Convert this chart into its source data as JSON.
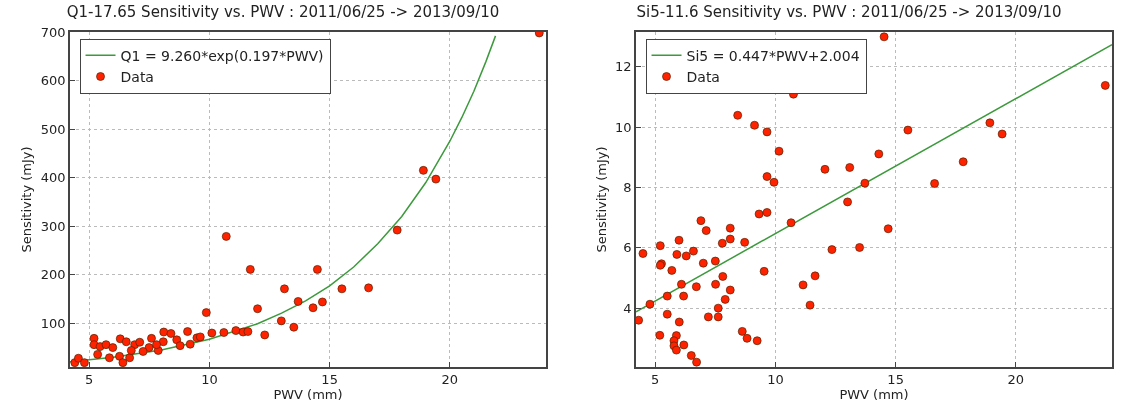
{
  "chart_data": [
    {
      "type": "scatter",
      "title": "Q1-17.65 Sensitivity vs. PWV : 2011/06/25 -> 2013/09/10",
      "xlabel": "PWV (mm)",
      "ylabel": "Sensitivity (mJy)",
      "xlim": [
        4.2,
        24
      ],
      "xticks": [
        5,
        10,
        15,
        20
      ],
      "ylim": [
        10,
        700
      ],
      "yticks": [
        100,
        200,
        300,
        400,
        500,
        600,
        700
      ],
      "grid": true,
      "legend": "top left",
      "series": [
        {
          "type": "line",
          "name": "Q1 = 9.260*exp(0.197*PWV)",
          "color": "#3c9a3c",
          "marker": "none",
          "line_style": "solid",
          "x": [
            4.2,
            6,
            8,
            10,
            12,
            13,
            14,
            15,
            16,
            17,
            18,
            19,
            20,
            20.5,
            21,
            21.5,
            21.9
          ],
          "values": [
            21,
            30,
            45,
            67,
            99,
            121,
            146,
            177,
            216,
            264,
            320,
            390,
            475,
            524,
            578,
            639,
            692
          ]
        },
        {
          "name": "Data",
          "color": "#ff2200",
          "marker": "circle",
          "x": [
            10.7,
            11.7,
            12.0,
            12.3,
            9.87,
            10.1,
            10.6,
            11.1,
            11.4,
            11.6,
            4.4,
            4.55,
            4.8,
            5.2,
            5.2,
            5.45,
            5.7,
            5.98,
            6.29,
            6.54,
            6.89,
            7.1,
            7.59,
            7.49,
            7.87,
            8.08,
            8.1,
            8.4,
            8.64,
            8.78,
            9.09,
            9.2,
            9.48,
            9.62,
            5.35,
            5.84,
            6.26,
            6.68,
            6.4,
            6.75,
            7.24,
            7.8,
            23.72,
            18.9,
            19.42,
            17.81,
            14.49,
            13.12,
            15.51,
            16.62,
            13.69,
            14.7,
            14.31,
            12.99,
            13.51
          ],
          "values": [
            279,
            211,
            130,
            76,
            122,
            80,
            81,
            85,
            82,
            83,
            19,
            28,
            19,
            69,
            56,
            52,
            56,
            50,
            68,
            62,
            56,
            61,
            69,
            50,
            44,
            62,
            82,
            79,
            66,
            54,
            83,
            57,
            70,
            72,
            36,
            29,
            32,
            29,
            19,
            44,
            42,
            56,
            698,
            415,
            397,
            292,
            211,
            171,
            171,
            173,
            145,
            144,
            132,
            105,
            92
          ]
        }
      ]
    },
    {
      "type": "scatter",
      "title": "Si5-11.6 Sensitivity vs. PWV : 2011/06/25 -> 2013/09/10",
      "xlabel": "PWV (mm)",
      "ylabel": "Sensitivity (mJy)",
      "xlim": [
        4.2,
        24
      ],
      "xticks": [
        5,
        10,
        15,
        20
      ],
      "ylim": [
        2.05,
        13.15
      ],
      "yticks": [
        4,
        6,
        8,
        10,
        12
      ],
      "grid": true,
      "legend": "top left",
      "series": [
        {
          "type": "line",
          "name": "Si5 = 0.447*PWV+2.004",
          "color": "#3c9a3c",
          "marker": "none",
          "line_style": "solid",
          "x": [
            4.2,
            24
          ],
          "values": [
            3.88,
            12.73
          ]
        },
        {
          "name": "Data",
          "color": "#ff2200",
          "marker": "circle",
          "x": [
            4.49,
            4.31,
            4.78,
            5.21,
            5.26,
            5.21,
            5.69,
            5.5,
            5.5,
            5.19,
            5.99,
            5.9,
            6.09,
            6.18,
            6.0,
            5.88,
            5.78,
            5.78,
            5.88,
            6.19,
            6.29,
            6.59,
            6.5,
            6.72,
            6.71,
            6.9,
            7.12,
            7.0,
            7.21,
            7.5,
            7.51,
            7.62,
            7.62,
            7.79,
            7.81,
            7.91,
            8.12,
            8.12,
            8.12,
            8.43,
            8.72,
            8.62,
            8.82,
            9.13,
            9.24,
            9.32,
            9.65,
            9.65,
            9.65,
            9.53,
            9.94,
            10.15,
            10.65,
            10.75,
            11.15,
            11.65,
            11.44,
            12.06,
            12.35,
            14.52,
            23.72,
            18.92,
            19.43,
            15.51,
            17.81,
            16.62,
            14.3,
            13.09,
            13.72,
            13.0,
            14.69,
            13.5
          ],
          "values": [
            5.81,
            3.6,
            4.13,
            6.07,
            5.47,
            5.42,
            5.25,
            4.4,
            3.8,
            3.1,
            6.25,
            5.78,
            4.79,
            4.4,
            3.54,
            3.09,
            2.92,
            2.75,
            2.61,
            2.78,
            5.73,
            5.89,
            2.43,
            2.21,
            4.71,
            6.9,
            6.57,
            5.49,
            3.71,
            5.56,
            4.79,
            4.0,
            3.71,
            6.15,
            5.05,
            4.29,
            6.29,
            6.65,
            4.6,
            10.39,
            6.18,
            3.23,
            3.0,
            10.06,
            2.92,
            7.12,
            9.84,
            8.36,
            7.17,
            5.22,
            8.17,
            9.2,
            6.83,
            11.09,
            4.77,
            5.07,
            4.1,
            8.6,
            5.94,
            12.99,
            11.38,
            10.14,
            9.77,
            9.9,
            8.85,
            8.13,
            9.11,
            8.66,
            8.14,
            7.52,
            6.63,
            6.01
          ]
        }
      ]
    }
  ]
}
